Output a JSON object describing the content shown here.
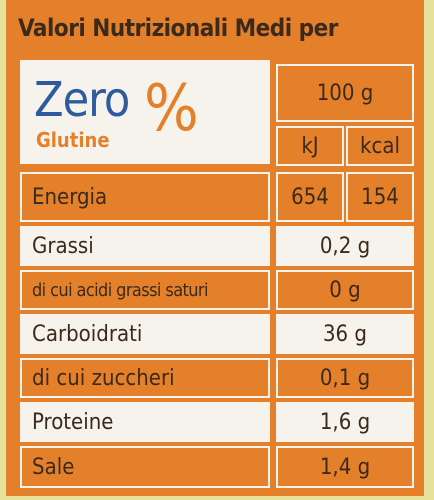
{
  "header": {
    "title": "Valori Nutrizionali Medi per"
  },
  "logo": {
    "brand": "Zero",
    "symbol": "%",
    "subtitle": "Glutine"
  },
  "table": {
    "amount": "100 g",
    "units": [
      "kJ",
      "kcal"
    ],
    "energy": {
      "label": "Energia",
      "values": [
        "654",
        "154"
      ]
    },
    "rows": [
      [
        "Grassi",
        "0,2 g"
      ],
      [
        "di cui acidi grassi saturi",
        "0 g"
      ],
      [
        "Carboidrati",
        "36 g"
      ],
      [
        "di cui zuccheri",
        "0,1 g"
      ],
      [
        "Proteine",
        "1,6 g"
      ],
      [
        "Sale",
        "1,4 g"
      ]
    ]
  }
}
